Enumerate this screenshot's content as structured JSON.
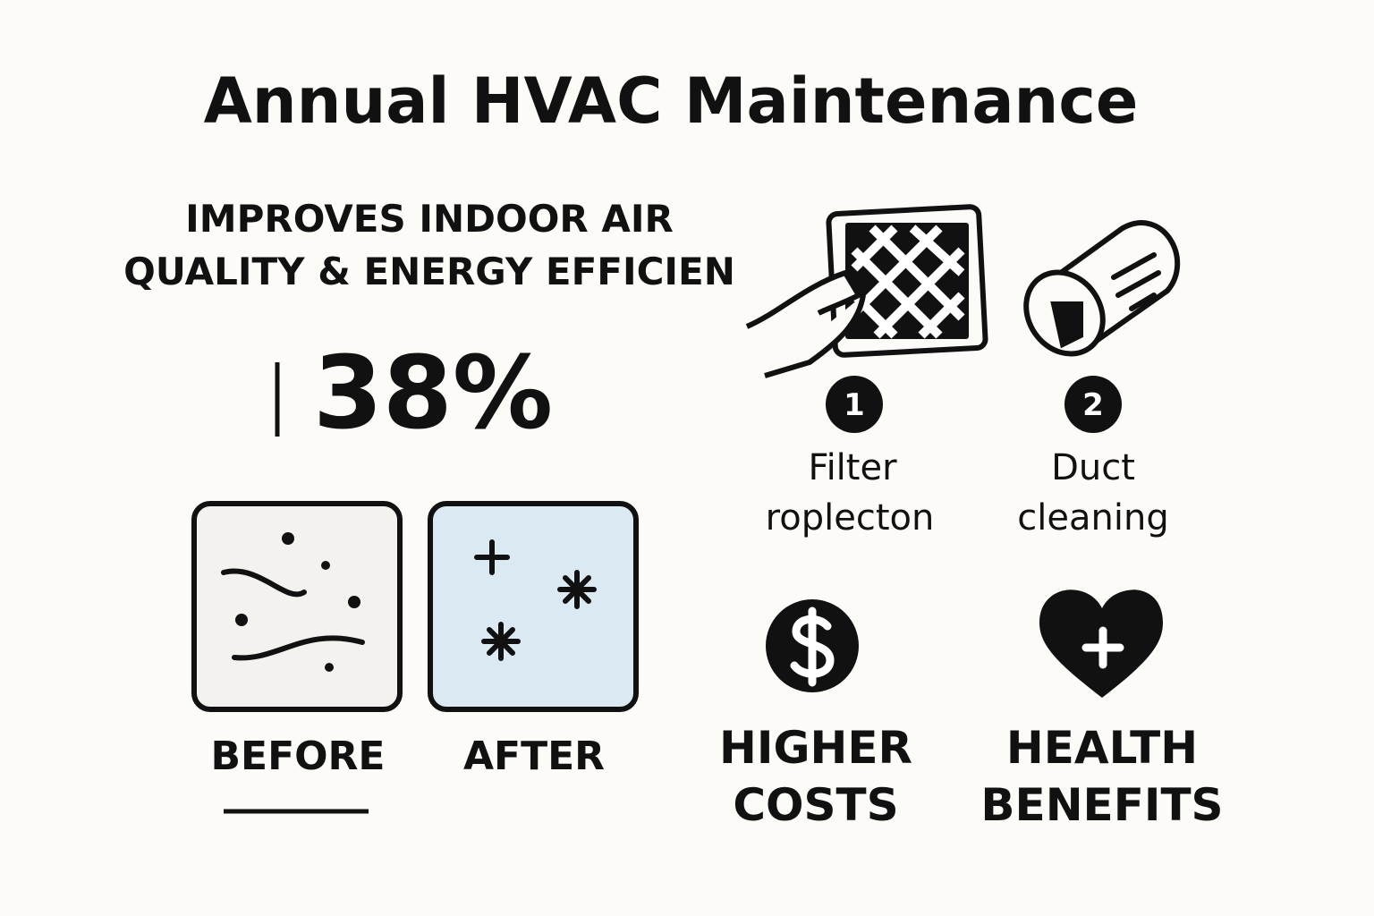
{
  "header": {
    "title": "Annual HVAC Maintenance"
  },
  "subtitle": {
    "lines": [
      "IMPROVES INDOOR AIR",
      "QUALITY & ENERGY EFFICIEN"
    ]
  },
  "stat": "38%",
  "comparison": {
    "before": "BEFORE",
    "after": "AFTER"
  },
  "steps": [
    {
      "number": "1",
      "lines": [
        "Filter",
        "roplecton"
      ]
    },
    {
      "number": "2",
      "lines": [
        "Duct",
        "cleaning"
      ]
    }
  ],
  "outcomes": [
    {
      "lines": [
        "HIGHER",
        "COSTS"
      ]
    },
    {
      "lines": [
        "HEALTH",
        "BENEFITS"
      ]
    }
  ]
}
